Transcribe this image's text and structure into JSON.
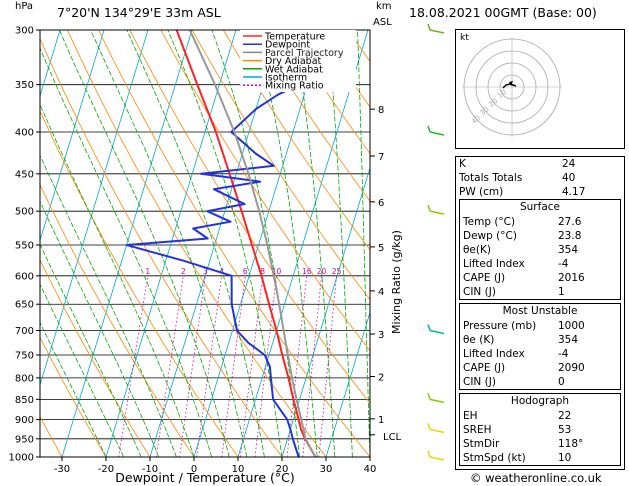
{
  "header": {
    "hpa_label": "hPa",
    "location": "7°20'N  134°29'E  33m  ASL",
    "km_label": "km",
    "asl_label": "ASL",
    "datetime": "18.08.2021  00GMT  (Base: 00)"
  },
  "footer": {
    "credit": "© weatheronline.co.uk"
  },
  "legend": [
    {
      "label": "Temperature",
      "color": "#ff2222",
      "dash": ""
    },
    {
      "label": "Dewpoint",
      "color": "#2233dd",
      "dash": ""
    },
    {
      "label": "Parcel Trajectory",
      "color": "#888888",
      "dash": ""
    },
    {
      "label": "Dry Adiabat",
      "color": "#ff8800",
      "dash": ""
    },
    {
      "label": "Wet Adiabat",
      "color": "#00aa00",
      "dash": ""
    },
    {
      "label": "Isotherm",
      "color": "#00aacc",
      "dash": ""
    },
    {
      "label": "Mixing Ratio",
      "color": "#cc00aa",
      "dash": "2,2"
    }
  ],
  "hodograph": {
    "kt_label": "kt",
    "ring_labels": [
      "10",
      "20",
      "30",
      "40"
    ]
  },
  "indices": [
    {
      "label": "K",
      "value": "24"
    },
    {
      "label": "Totals Totals",
      "value": "40"
    },
    {
      "label": "PW (cm)",
      "value": "4.17"
    }
  ],
  "surface": {
    "title": "Surface",
    "rows": [
      {
        "label": "Temp (°C)",
        "value": "27.6"
      },
      {
        "label": "Dewp (°C)",
        "value": "23.8"
      },
      {
        "label": "θe(K)",
        "value": "354"
      },
      {
        "label": "Lifted Index",
        "value": "-4"
      },
      {
        "label": "CAPE (J)",
        "value": "2016"
      },
      {
        "label": "CIN (J)",
        "value": "1"
      }
    ]
  },
  "most_unstable": {
    "title": "Most Unstable",
    "rows": [
      {
        "label": "Pressure (mb)",
        "value": "1000"
      },
      {
        "label": "θe (K)",
        "value": "354"
      },
      {
        "label": "Lifted Index",
        "value": "-4"
      },
      {
        "label": "CAPE (J)",
        "value": "2090"
      },
      {
        "label": "CIN (J)",
        "value": "0"
      }
    ]
  },
  "hodograph_table": {
    "title": "Hodograph",
    "rows": [
      {
        "label": "EH",
        "value": "22"
      },
      {
        "label": "SREH",
        "value": "53"
      },
      {
        "label": "StmDir",
        "value": "118°"
      },
      {
        "label": "StmSpd (kt)",
        "value": "10"
      }
    ]
  },
  "chart_data": {
    "type": "line",
    "title": "",
    "xlabel": "Dewpoint / Temperature (°C)",
    "ylabel": "hPa",
    "right_label": "Mixing Ratio (g/kg)",
    "xlim": [
      -35,
      40
    ],
    "ylim": [
      1000,
      300
    ],
    "y_scale": "log",
    "x_ticks": [
      -30,
      -20,
      -10,
      0,
      10,
      20,
      30,
      40
    ],
    "pressure_ticks": [
      300,
      350,
      400,
      450,
      500,
      550,
      600,
      650,
      700,
      750,
      800,
      850,
      900,
      950,
      1000
    ],
    "km_ticks": [
      {
        "km": "1",
        "p": 898
      },
      {
        "km": "2",
        "p": 797
      },
      {
        "km": "3",
        "p": 707
      },
      {
        "km": "4",
        "p": 626
      },
      {
        "km": "5",
        "p": 553
      },
      {
        "km": "6",
        "p": 487
      },
      {
        "km": "7",
        "p": 428
      },
      {
        "km": "8",
        "p": 375
      }
    ],
    "lcl": {
      "label": "LCL",
      "p": 950
    },
    "mixing_ratio_labels": [
      "1",
      "2",
      "3",
      "4",
      "6",
      "8",
      "10",
      "16",
      "20",
      "25"
    ],
    "mixing_ratio_values": [
      1,
      2,
      3,
      4,
      6,
      8,
      10,
      16,
      20,
      25
    ],
    "mixing_ratio_label_p": 600,
    "series": [
      {
        "name": "Temperature",
        "color": "#ff2222",
        "p": [
          1000,
          975,
          950,
          925,
          900,
          850,
          800,
          750,
          700,
          650,
          600,
          550,
          500,
          450,
          400,
          350,
          300
        ],
        "t": [
          27.6,
          25.8,
          24.0,
          22.4,
          21.2,
          18.6,
          16.0,
          13.0,
          10.0,
          6.5,
          2.8,
          -1.5,
          -6.2,
          -11.5,
          -17.5,
          -25.0,
          -33.5
        ]
      },
      {
        "name": "Dewpoint",
        "color": "#2233dd",
        "p": [
          1000,
          975,
          950,
          925,
          900,
          850,
          800,
          775,
          750,
          725,
          700,
          650,
          600,
          575,
          550,
          540,
          525,
          515,
          500,
          490,
          480,
          470,
          460,
          450,
          440,
          425,
          400,
          375,
          360,
          350,
          340,
          320,
          300
        ],
        "t": [
          23.8,
          22.5,
          21.2,
          20.0,
          18.6,
          14.0,
          12.0,
          11.0,
          9.0,
          4.5,
          1.0,
          -2.0,
          -4.0,
          -16.0,
          -30.0,
          -12.0,
          -16.0,
          -8.0,
          -14.0,
          -6.0,
          -10.0,
          -14.0,
          -4.0,
          -18.0,
          -2.0,
          -7.0,
          -14.0,
          -10.0,
          -6.0,
          -2.0,
          -8.0,
          -9.0,
          -14.0
        ]
      },
      {
        "name": "Parcel Trajectory",
        "color": "#999999",
        "p": [
          1000,
          950,
          900,
          850,
          800,
          750,
          700,
          650,
          600,
          550,
          500,
          450,
          400,
          350,
          300
        ],
        "t": [
          27.6,
          24.1,
          21.8,
          19.3,
          16.8,
          14.3,
          11.6,
          8.8,
          5.6,
          2.0,
          -2.2,
          -7.2,
          -13.3,
          -21.0,
          -30.5
        ]
      }
    ],
    "wind_barbs": [
      {
        "p": 1000,
        "color": "#dddd00"
      },
      {
        "p": 925,
        "color": "#dddd00"
      },
      {
        "p": 850,
        "color": "#88cc00"
      },
      {
        "p": 700,
        "color": "#00bb99"
      },
      {
        "p": 500,
        "color": "#88cc00"
      },
      {
        "p": 400,
        "color": "#22bb22"
      },
      {
        "p": 300,
        "color": "#66bb22"
      }
    ]
  }
}
